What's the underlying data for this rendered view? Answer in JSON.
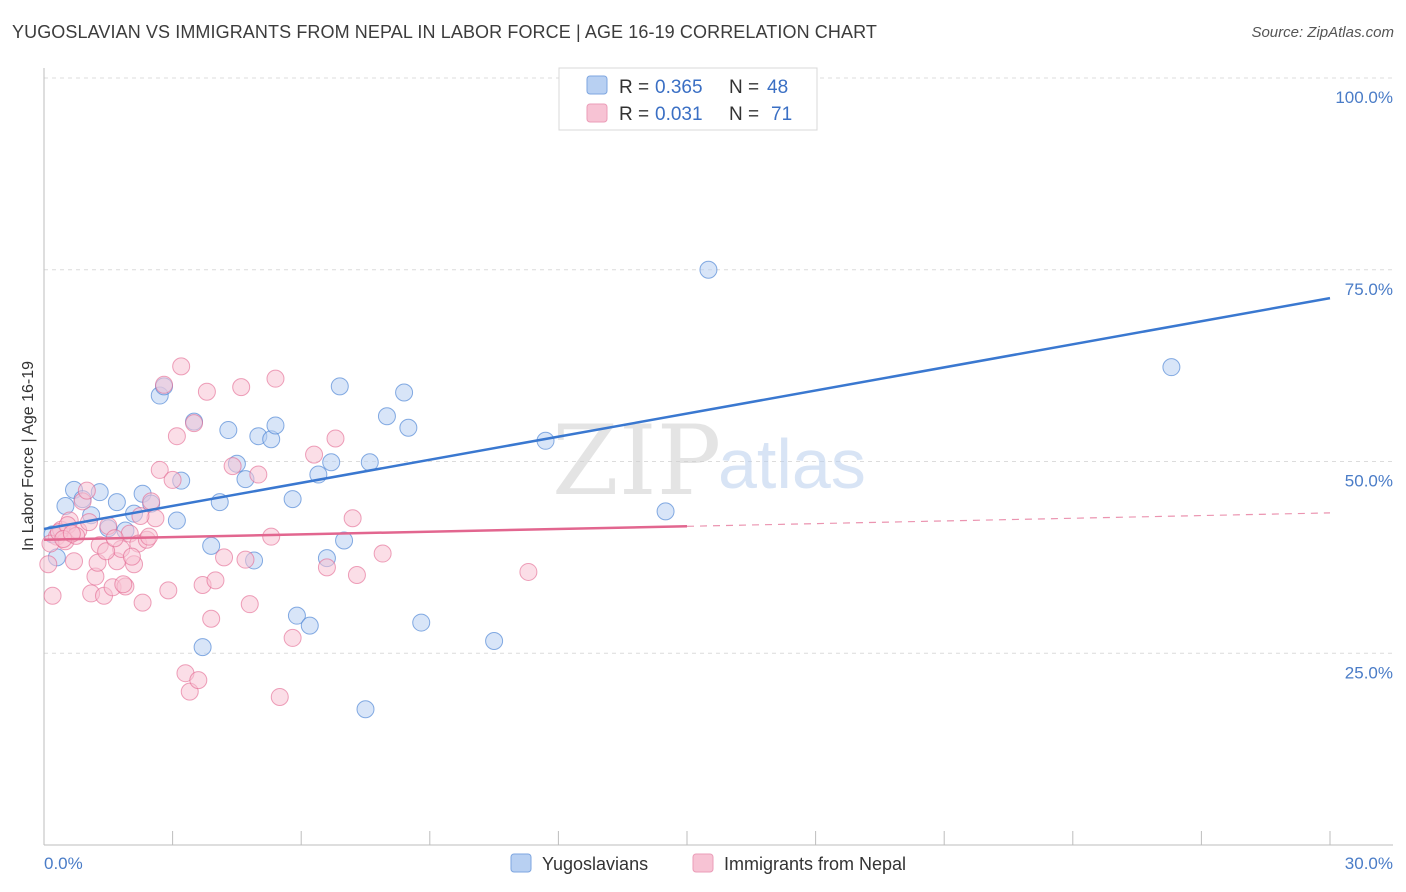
{
  "header": {
    "title": "YUGOSLAVIAN VS IMMIGRANTS FROM NEPAL IN LABOR FORCE | AGE 16-19 CORRELATION CHART",
    "source": "Source: ZipAtlas.com"
  },
  "watermark": {
    "zip": "ZIP",
    "atlas": "atlas"
  },
  "legend": {
    "rows": [
      {
        "r_label": "R = ",
        "r_value": "0.365",
        "n_label": "N = ",
        "n_value": "48",
        "color": "#8fb4e8"
      },
      {
        "r_label": "R = ",
        "r_value": "0.031",
        "n_label": "N = ",
        "n_value": "71",
        "color": "#f2a7c0"
      }
    ]
  },
  "bottom_legend": [
    {
      "label": "Yugoslavians",
      "color": "#8fb4e8"
    },
    {
      "label": "Immigrants from Nepal",
      "color": "#f2a7c0"
    }
  ],
  "chart_data": {
    "type": "scatter",
    "xlabel": "",
    "ylabel": "In Labor Force | Age 16-19",
    "xlim": [
      0,
      30
    ],
    "ylim": [
      0,
      105
    ],
    "x_tick_labels": [
      "0.0%",
      "30.0%"
    ],
    "y_ticks": [
      {
        "value": 25,
        "label": "25.0%"
      },
      {
        "value": 50,
        "label": "50.0%"
      },
      {
        "value": 75,
        "label": "75.0%"
      },
      {
        "value": 100,
        "label": "100.0%"
      }
    ],
    "grid": true,
    "series": [
      {
        "name": "Yugoslavians",
        "color": "#3a78d0",
        "fill": "#b8d0f2",
        "trend": {
          "x": [
            0,
            30
          ],
          "y": [
            41.2,
            71.3
          ],
          "dash_from": null
        },
        "points": [
          [
            0.2,
            40.5
          ],
          [
            0.5,
            44.2
          ],
          [
            0.7,
            46.3
          ],
          [
            0.9,
            45.1
          ],
          [
            1.1,
            43.0
          ],
          [
            1.3,
            46.0
          ],
          [
            1.5,
            41.3
          ],
          [
            1.7,
            44.7
          ],
          [
            1.9,
            41.0
          ],
          [
            2.1,
            43.2
          ],
          [
            2.3,
            45.8
          ],
          [
            2.5,
            44.5
          ],
          [
            2.7,
            58.6
          ],
          [
            2.8,
            59.8
          ],
          [
            3.1,
            42.3
          ],
          [
            3.2,
            47.5
          ],
          [
            3.5,
            55.2
          ],
          [
            3.7,
            25.8
          ],
          [
            3.9,
            39.0
          ],
          [
            4.1,
            44.7
          ],
          [
            4.3,
            54.1
          ],
          [
            4.5,
            49.7
          ],
          [
            4.7,
            47.7
          ],
          [
            4.9,
            37.1
          ],
          [
            5.0,
            53.3
          ],
          [
            5.3,
            52.9
          ],
          [
            5.4,
            54.7
          ],
          [
            5.8,
            45.1
          ],
          [
            5.9,
            29.9
          ],
          [
            6.2,
            28.6
          ],
          [
            6.4,
            48.3
          ],
          [
            6.6,
            37.4
          ],
          [
            6.7,
            49.9
          ],
          [
            6.9,
            59.8
          ],
          [
            7.0,
            39.7
          ],
          [
            7.5,
            17.7
          ],
          [
            7.6,
            49.9
          ],
          [
            8.0,
            55.9
          ],
          [
            8.4,
            59.0
          ],
          [
            8.5,
            54.4
          ],
          [
            8.8,
            29.0
          ],
          [
            10.5,
            26.6
          ],
          [
            11.7,
            52.7
          ],
          [
            14.5,
            43.5
          ],
          [
            15.5,
            75.0
          ],
          [
            15.0,
            100.2
          ],
          [
            26.3,
            62.3
          ],
          [
            0.3,
            37.5
          ]
        ]
      },
      {
        "name": "Immigrants from Nepal",
        "color": "#e2668f",
        "fill": "#f7c3d4",
        "trend": {
          "x": [
            0,
            30
          ],
          "y": [
            39.8,
            43.3
          ],
          "dash_from": 15.0
        },
        "points": [
          [
            0.1,
            36.6
          ],
          [
            0.2,
            32.5
          ],
          [
            0.3,
            40.2
          ],
          [
            0.4,
            41.1
          ],
          [
            0.5,
            39.6
          ],
          [
            0.6,
            42.3
          ],
          [
            0.7,
            37.0
          ],
          [
            0.8,
            41.0
          ],
          [
            0.9,
            44.8
          ],
          [
            1.0,
            46.2
          ],
          [
            1.1,
            32.8
          ],
          [
            1.2,
            35.0
          ],
          [
            1.3,
            39.1
          ],
          [
            1.4,
            32.5
          ],
          [
            1.5,
            41.6
          ],
          [
            1.6,
            33.6
          ],
          [
            1.7,
            37.0
          ],
          [
            1.8,
            38.6
          ],
          [
            1.9,
            33.7
          ],
          [
            2.0,
            40.6
          ],
          [
            2.1,
            36.6
          ],
          [
            2.2,
            39.3
          ],
          [
            2.3,
            31.6
          ],
          [
            2.4,
            39.8
          ],
          [
            2.5,
            44.8
          ],
          [
            2.6,
            42.6
          ],
          [
            2.7,
            48.9
          ],
          [
            2.8,
            60.0
          ],
          [
            2.9,
            33.2
          ],
          [
            3.0,
            47.6
          ],
          [
            3.1,
            53.3
          ],
          [
            3.2,
            62.4
          ],
          [
            3.3,
            22.4
          ],
          [
            3.4,
            20.0
          ],
          [
            3.5,
            55.0
          ],
          [
            3.6,
            21.5
          ],
          [
            3.7,
            33.9
          ],
          [
            3.8,
            59.1
          ],
          [
            3.9,
            29.5
          ],
          [
            4.0,
            34.5
          ],
          [
            4.2,
            37.5
          ],
          [
            4.4,
            49.4
          ],
          [
            4.6,
            59.7
          ],
          [
            4.7,
            37.2
          ],
          [
            4.8,
            31.4
          ],
          [
            5.0,
            48.3
          ],
          [
            5.3,
            40.2
          ],
          [
            5.4,
            60.8
          ],
          [
            5.5,
            19.3
          ],
          [
            5.8,
            27.0
          ],
          [
            6.3,
            50.9
          ],
          [
            6.6,
            36.2
          ],
          [
            6.8,
            53.0
          ],
          [
            7.2,
            42.6
          ],
          [
            7.3,
            35.2
          ],
          [
            7.9,
            38.0
          ],
          [
            11.3,
            35.6
          ],
          [
            0.15,
            39.3
          ],
          [
            0.35,
            40.8
          ],
          [
            0.55,
            41.7
          ],
          [
            0.75,
            40.3
          ],
          [
            1.05,
            42.1
          ],
          [
            1.25,
            36.8
          ],
          [
            1.45,
            38.3
          ],
          [
            1.65,
            40.0
          ],
          [
            1.85,
            34.0
          ],
          [
            2.05,
            37.6
          ],
          [
            2.25,
            42.9
          ],
          [
            2.45,
            40.2
          ],
          [
            0.45,
            39.9
          ],
          [
            0.65,
            40.6
          ]
        ]
      }
    ]
  }
}
